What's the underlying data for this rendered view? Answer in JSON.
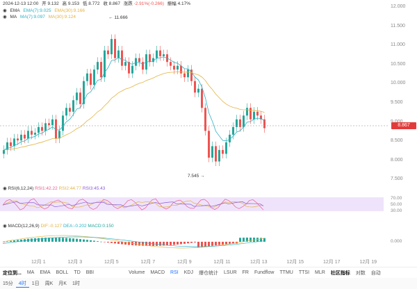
{
  "header": {
    "datetime": "2024-12-13 12:00",
    "open_label": "开",
    "open": "9.132",
    "high_label": "高",
    "high": "9.153",
    "low_label": "低",
    "low": "8.772",
    "close_label": "收",
    "close": "8.867",
    "change_label": "涨跌",
    "change": "-2.91%(-0.266)",
    "amplitude_label": "振幅",
    "amplitude": "4.17%"
  },
  "ema_legend": {
    "name": "EMA",
    "ema7": "EMA(7):9.025",
    "ema30": "EMA(30):9.166"
  },
  "ma_legend": {
    "name": "MA",
    "ma7": "MA(7):9.097",
    "ma30": "MA(30):9.124"
  },
  "annotations": {
    "high": "11.666",
    "low": "7.545"
  },
  "price_axis": [
    "12.000",
    "11.500",
    "11.000",
    "10.500",
    "10.000",
    "9.500",
    "9.000",
    "8.500",
    "8.000",
    "7.500"
  ],
  "current_price": "8.867",
  "rsi_legend": {
    "name": "RSI(6,12,24)",
    "rsi1": "RSI1:42.22",
    "rsi2": "RSI2:44.77",
    "rsi3": "RSI3:45.43"
  },
  "rsi_axis": [
    "70.00",
    "50.00",
    "30.00"
  ],
  "macd_legend": {
    "name": "MACD(12,26,9)",
    "dif": "DIF:-0.127",
    "dea": "DEA:-0.202",
    "macd": "MACD:0.150"
  },
  "macd_axis": [
    "0.000"
  ],
  "date_axis": [
    "12月 1",
    "12月 3",
    "12月 5",
    "12月 7",
    "12月 9",
    "12月 11",
    "12月 13",
    "12月 15",
    "12月 17",
    "12月 19"
  ],
  "toolbar": {
    "left_label": "定位到...",
    "indicators": [
      "MA",
      "EMA",
      "BOLL",
      "TD",
      "BBI"
    ],
    "right_indicators": [
      "Volume",
      "MACD",
      "RSI",
      "KDJ",
      "爆仓统计",
      "LSUR",
      "FR",
      "Fundflow",
      "TTMU",
      "TTSI",
      "MLR"
    ],
    "community_label": "社区指标",
    "compare_label": "对数",
    "auto_label": "自动",
    "log_label": "零"
  },
  "intervals": [
    "15分",
    "4时",
    "1日",
    "周K",
    "月K",
    "1时"
  ],
  "colors": {
    "up": "#26a69a",
    "down": "#ef5350",
    "ema7": "#2ab0c5",
    "ema30": "#e3b341",
    "rsi1": "#e85c8a",
    "rsi2": "#e3b341",
    "rsi3": "#8a5cd6"
  }
}
